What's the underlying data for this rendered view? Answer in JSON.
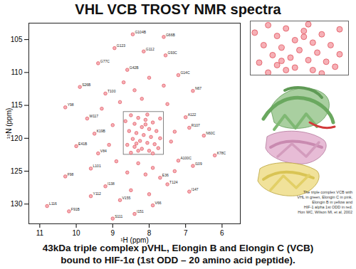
{
  "chart_data": [
    {
      "type": "scatter",
      "title": "VHL VCB TROSY NMR spectra",
      "xlabel": "¹H (ppm)",
      "ylabel": "¹⁵N (ppm)",
      "xlim": [
        11.3,
        5.5
      ],
      "ylim": [
        133,
        102.5
      ],
      "xticks": [
        11,
        10,
        9,
        8,
        7,
        6
      ],
      "yticks": [
        105,
        110,
        115,
        120,
        125,
        130
      ],
      "color": "#e0505b",
      "marker": "circle",
      "grid": false,
      "x": [
        8.45,
        7.6,
        8.95,
        8.15,
        7.55,
        9.4,
        8.6,
        7.2,
        9.9,
        9.2,
        6.8,
        10.3,
        9.7,
        9.5,
        7.0,
        6.9,
        6.5,
        6.2,
        10.0,
        9.4,
        6.8,
        9.6,
        10.3,
        9.2,
        7.5,
        6.9,
        9.6,
        8.8,
        10.8,
        10.2,
        8.4,
        7.9,
        9.0,
        7.2,
        7.7,
        8.5,
        8.3,
        8.1,
        7.9,
        8.4,
        8.2,
        8.0,
        7.8,
        8.55,
        8.35,
        8.15,
        7.95,
        8.45,
        8.25,
        8.05,
        7.85,
        8.6,
        8.4,
        8.2,
        8.0,
        7.75,
        8.5,
        8.3,
        7.9,
        8.1,
        8.65,
        7.7,
        8.05,
        8.35,
        7.7,
        8.8,
        8.2,
        7.5,
        8.9,
        8.3,
        7.9,
        8.6,
        8.1,
        9.0,
        7.4,
        7.3,
        8.7,
        8.0,
        7.6,
        9.1,
        8.5,
        8.0,
        7.3,
        8.4,
        9.3
      ],
      "y": [
        104.2,
        104.6,
        106.3,
        106.8,
        107.4,
        108.6,
        109.6,
        110.4,
        112.2,
        113.2,
        112.8,
        115.3,
        117.0,
        119.3,
        116.8,
        118.4,
        119.6,
        122.6,
        121.2,
        122.3,
        124.2,
        124.6,
        125.8,
        127.3,
        127.0,
        128.1,
        128.8,
        129.4,
        130.3,
        131.1,
        131.5,
        130.2,
        132.2,
        123.4,
        126.0,
        116.5,
        116.9,
        117.2,
        117.6,
        117.8,
        118.3,
        118.6,
        118.9,
        118.9,
        119.2,
        119.5,
        119.8,
        120.1,
        120.4,
        120.7,
        120.9,
        121.0,
        121.3,
        121.6,
        121.9,
        121.5,
        122.2,
        121.9,
        122.3,
        117.9,
        117.4,
        117.0,
        116.4,
        120.8,
        120.0,
        114.5,
        114.0,
        114.8,
        123.5,
        123.8,
        124.5,
        125.2,
        125.5,
        118.0,
        120.5,
        119.0,
        111.5,
        110.8,
        112.0,
        121.0,
        127.9,
        128.5,
        125.0,
        112.7,
        115.5
      ],
      "labels": [
        "G104B",
        "G66B",
        "G123",
        "G112",
        "G93C",
        "G77C",
        "G42B",
        "G14C",
        "S26B",
        "T100",
        "N67",
        "Y98",
        "W117",
        "K19B",
        "A122",
        "R107",
        "N60C",
        "K78C",
        "E41B",
        "V84",
        "I109",
        "L101",
        "F98",
        "I138",
        "T124",
        "I147",
        "Y112",
        "V155",
        "L116",
        "F91B",
        "I151",
        "V66",
        "S111",
        "A100C",
        "E36",
        null,
        null,
        null,
        null,
        null,
        null,
        null,
        null,
        null,
        null,
        null,
        null,
        null,
        null,
        null,
        null,
        null,
        null,
        null,
        null,
        null,
        null,
        null,
        null,
        null,
        null,
        null,
        null,
        null,
        null,
        null,
        null,
        null,
        null,
        null,
        null,
        null,
        null,
        null,
        null,
        null,
        null,
        null,
        null,
        null,
        null,
        null,
        null,
        null,
        null
      ]
    },
    {
      "type": "scatter",
      "xlim": [
        8.7,
        7.6
      ],
      "ylim": [
        122.5,
        116
      ],
      "tick_labels": false,
      "color": "#e0505b"
    }
  ],
  "figure": {
    "caption_lines": [
      "The triple complex VCB with",
      "VHL in green, Elongin C in pink,",
      "Elongin B in yellow and",
      "HIF-1 alpha 1st ODD in red.",
      "Hon WC, Wilson MI, et al, 2002"
    ]
  },
  "caption": [
    "43kDa triple complex pVHL, Elongin B and Elongin C (VCB)",
    "bound to HIF-1α (1st ODD – 20 amino acid peptide)."
  ]
}
